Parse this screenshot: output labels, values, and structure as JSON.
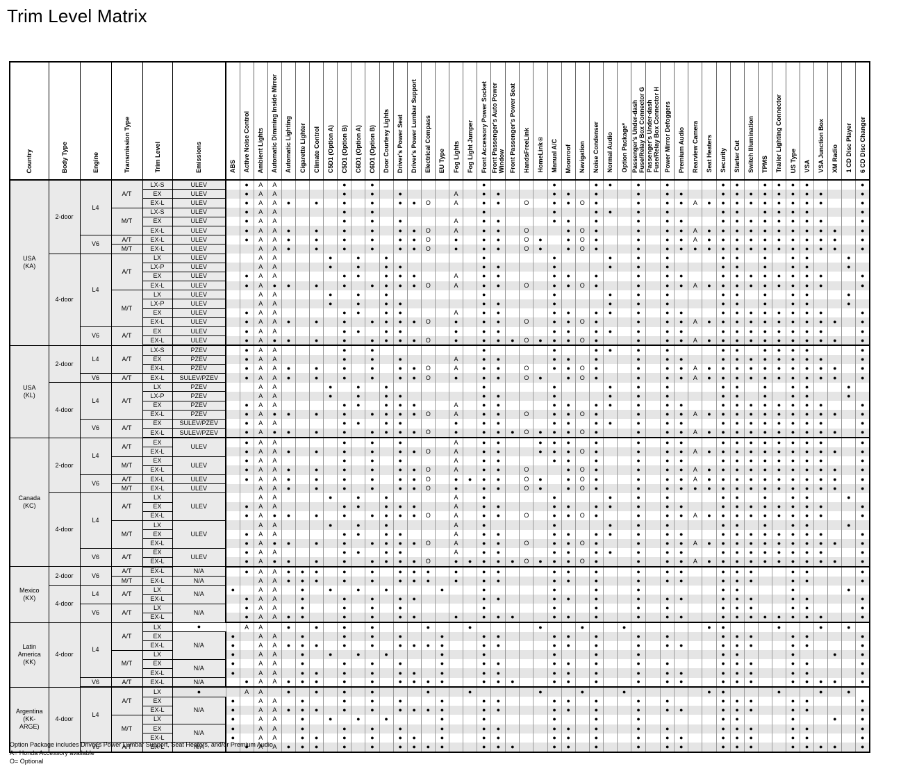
{
  "title": "Trim Level Matrix",
  "left_headers": [
    "Country",
    "Body Type",
    "Engine",
    "Transmission Type",
    "Trim Level",
    "Emissions"
  ],
  "features": [
    "ABS",
    "Active Noise Control",
    "Ambient Lights",
    "Automatic Dimming Inside Mirror",
    "Automatic Lighting",
    "Cigarette Lighter",
    "Climate Control",
    "C5D1 (Option A)",
    "C5D1 (Option B)",
    "C6D1 (Option A)",
    "C6D1 (Option B)",
    "Door Courtesy Lights",
    "Driver's Power Seat",
    "Driver's Power Lumbar Support",
    "Electrical Compass",
    "EU Type",
    "Fog Lights",
    "Fog Light Jumper",
    "Front Accessory Power Socket",
    "Front Passenger's Auto Power\nWindow",
    "Front Passenger's Power Seat",
    "HandsFreeLink",
    "HomeLink®",
    "Manual A/C",
    "Moonroof",
    "Navigation",
    "Noise Condenser",
    "Normal Audio",
    "Option Package*",
    "Passenger's Under-dash\nFuse/Relay Box Connector G",
    "Passenger's Under-dash\nFuse/Relay Box Connector H",
    "Power Mirror Defoggers",
    "Premium Audio",
    "Rearview Camera",
    "Seat Heaters",
    "Security",
    "Starter Cut",
    "Switch Illumination",
    "TPMS",
    "Trailer Lighting Connector",
    "US Type",
    "VSA",
    "VSA Junction Box",
    "XM Radio",
    "1 CD Disc Player",
    "6 CD Disc Changer"
  ],
  "rows": [
    {
      "trim": "LX-S",
      "emis": "ULEV",
      "cells": ". ● A A . . . . ● . ● . . . . . . . ● . . . . ● . . ● ● . ● . ● . . . ● ● . ● ● ● ● . . . ●"
    },
    {
      "trim": "EX",
      "emis": "ULEV",
      "cells": ". ● A A . . . . ● . ● . ● . . . A . ● ● . . . ● ● . ● . . ● . ● ● . . ● ● ● ● ● ● ● ● . . ●"
    },
    {
      "trim": "EX-L",
      "emis": "ULEV",
      "cells": ". ● A A ● . ● . ● . ● . ● ● O . A . ● ● . O . ● ● O ● . . ● . ● ● A ● ● ● ● ● ● ● ● ● . . ●"
    },
    {
      "trim": "LX-S",
      "emis": "ULEV",
      "cells": ". ● A A . . . . ● . ● . . . . . . . ● . . . . ● . . ● ● . ● . ● . . . ● ● . ● ● ● ● . . . ●"
    },
    {
      "trim": "EX",
      "emis": "ULEV",
      "cells": ". ● A A . . . . ● . ● . ● . . . A . ● ● . . . ● ● . ● . . ● . ● ● . . ● ● ● ● ● ● ● ● . . ●"
    },
    {
      "trim": "EX-L",
      "emis": "ULEV",
      "cells": ". ● A A ● . ● . ● . ● . ● ● O . A . ● ● . O . . ● O ● . . ● . ● ● A ● ● ● ● ● ● ● ● ● ● . ●"
    },
    {
      "trim": "EX-L",
      "emis": "ULEV",
      "cells": ". ● A A ● . ● . ● . ● . ● ● O . ● . ● ● . O ● . ● O ● . . ● . ● ● A ● ● ● ● ● ● ● ● ● ● . ●"
    },
    {
      "trim": "EX-L",
      "emis": "ULEV",
      "cells": ". . A A ● . ● . ● . ● . ● ● O . ● . ● ● . O ● . ● O ● . . ● . ● ● ● ● ● ● ● ● ● ● ● ● ● . ●"
    },
    {
      "trim": "LX",
      "emis": "ULEV",
      "cells": ". . A A . . . ● . ● . ● . . . . . . ● . . . . ● . . . ● . ● . ● . . . ● ● . ● . ● ● . . ● ."
    },
    {
      "trim": "LX-P",
      "emis": "ULEV",
      "cells": ". . A A . . . ● . ● . ● ● . . . . . ● ● . . . ● . . . ● . ● . ● . . . ● ● . ● . ● ● . . ● ."
    },
    {
      "trim": "EX",
      "emis": "ULEV",
      "cells": ". ● A A . . . . ● ● . ● ● ● . . A . ● ● . . . ● ● . ● . . ● . ● ● . . ● ● ● ● ● ● ● ● . . ●"
    },
    {
      "trim": "EX-L",
      "emis": "ULEV",
      "cells": ". ● A ● ● . ● . ● . ● ● ● ● O . A . ● ● . O . ● ● O ● . . ● . ● ● A ● ● ● ● ● ● ● ● ● . . ●"
    },
    {
      "trim": "LX",
      "emis": "ULEV",
      "cells": ". . A A . . . ● . ● . ● . . . . . . ● . . . . ● . . . ● . ● . ● . . . ● ● . ● . ● ● . . ● ."
    },
    {
      "trim": "LX-P",
      "emis": "ULEV",
      "cells": ". . A A . . . ● . ● . ● ● . . . . . ● ● . . . ● . . . ● . ● . ● . . . ● ● . ● . ● ● . . ● ."
    },
    {
      "trim": "EX",
      "emis": "ULEV",
      "cells": ". ● A A . . . . ● ● . ● ● . . . A . ● ● . . . ● ● . ● ● . ● . ● ● . . ● ● ● ● ● ● ● ● . . ●"
    },
    {
      "trim": "EX-L",
      "emis": "ULEV",
      "cells": ". ● A A ● . ● . ● . ● ● ● ● O . ● . ● ● . O . ● ● O ● . . ● . ● ● A ● ● ● ● ● ● ● ● ● ● . ●"
    },
    {
      "trim": "EX",
      "emis": "ULEV",
      "cells": ". ● A A . . . . ● ● . ● ● . . . ● . ● ● . . . ● ● . ● ● . ● . ● ● . . ● ● ● ● ● ● ● ● . . ●"
    },
    {
      "trim": "EX-L",
      "emis": "ULEV",
      "cells": ". ● A ● ● . ● . ● . ● ● ● ● O . ● . ● ● ● O ● ● ● O ● . . ● . ● ● A ● ● ● ● ● ● ● ● ● ● . ●"
    },
    {
      "trim": "LX-S",
      "emis": "PZEV",
      "cells": ". ● A A . . . . ● . ● . . . . . . . ● . . . . ● . . ● ● . ● . ● . . . ● ● . ● ● ● ● . . . ●"
    },
    {
      "trim": "EX",
      "emis": "PZEV",
      "cells": ". ● A A . . . . ● . ● . ● . . . A . ● ● . . . ● ● . ● . . ● . ● ● . . ● ● ● ● ● ● ● ● . . ●"
    },
    {
      "trim": "EX-L",
      "emis": "PZEV",
      "cells": ". ● A A ● . ● . ● . ● . ● ● O . A . ● ● . O . ● ● O ● . . ● . ● ● A ● ● ● ● ● ● ● ● ● ● . ●"
    },
    {
      "trim": "EX-L",
      "emis": "SULEV/PZEV",
      "cells": ". ● A A ● . ● . ● . ● . ● ● O . ● . ● ● . O ● . ● O ● . . ● . ● ● A ● ● ● ● ● ● ● ● ● ● . ●"
    },
    {
      "trim": "LX",
      "emis": "PZEV",
      "cells": ". . A A . . . ● . ● . ● . . . . . . ● . . . . ● . . . ● . ● . ● . . . ● ● . ● . ● ● . . ● ."
    },
    {
      "trim": "LX-P",
      "emis": "PZEV",
      "cells": ". . A A . . . ● . ● . ● ● . . . . . ● ● . . . ● . . . ● . ● . ● . . . ● ● . ● . ● ● . . ● ."
    },
    {
      "trim": "EX",
      "emis": "PZEV",
      "cells": ". ● A A . . . . ● ● . ● ● ● . . A . ● ● . . . ● ● . ● ● . ● . ● ● . . ● ● ● ● ● ● ● ● . . ●"
    },
    {
      "trim": "EX-L",
      "emis": "PZEV",
      "cells": ". ● A ● ● . ● . ● . ● ● ● ● O . A . ● ● . O . ● ● O ● . . ● . ● ● A ● ● ● ● ● ● ● ● ● ● . ●"
    },
    {
      "trim": "EX",
      "emis": "SULEV/PZEV",
      "cells": ". ● A A . . . . ● ● . ● ● . . . ● . ● ● . . . ● ● . ● ● . ● . ● ● . . ● ● ● ● ● ● ● ● . . ●"
    },
    {
      "trim": "EX-L",
      "emis": "SULEV/PZEV",
      "cells": ". ● A ● ● . ● . ● . ● ● ● ● O . ● . ● ● ● O ● ● ● O ● . . ● . ● ● A ● ● ● ● ● ● ● ● ● ● . ●"
    },
    {
      "trim": "EX",
      "emis": "ULEV",
      "cells": ". ● A A . . . . ● . ● . ● . . . A . ● ● . . ● ● ● . ● . . ● . ● ● . . ● ● ● ● ● ● ● ● . . ●"
    },
    {
      "trim": "EX-L",
      "emis": "",
      "cells": ". ● A A ● . ● . ● . ● . ● ● O . A . ● ● . . ● ● ● O ● . . ● . ● ● A ● ● ● ● ● ● ● ● ● ● . ●"
    },
    {
      "trim": "EX",
      "emis": "ULEV",
      "cells": ". ● A A . . . . ● . ● . ● . . . A . ● ● . . . ● ● . ● . . ● . ● ● . . ● ● ● ● ● ● ● ● . . ●"
    },
    {
      "trim": "EX-L",
      "emis": "",
      "cells": ". ● A A ● . ● . ● . ● . ● ● O . A . ● ● . O . . ● O ● . . ● . ● ● A ● ● ● ● ● ● ● ● ● ● . ●"
    },
    {
      "trim": "EX-L",
      "emis": "ULEV",
      "cells": ". ● A A ● . ● . ● . ● . ● ● O . ● ● ● ● . O ● . ● O ● . . ● . ● ● A ● ● ● ● ● ● ● ● ● ● . ●"
    },
    {
      "trim": "EX-L",
      "emis": "ULEV",
      "cells": ". . A A ● . ● . ● . ● . ● ● O . ● . ● ● . O ● . ● O ● . . ● . ● ● ● ● ● ● ● ● ● ● ● ● ● . ●"
    },
    {
      "trim": "LX",
      "emis": "ULEV",
      "cells": ". . A A . . . ● . ● . ● . . . . A . ● . . . . ● . . . ● . ● . ● . . . ● ● . ● . ● ● . . ● ."
    },
    {
      "trim": "EX",
      "emis": "",
      "cells": ". ● A A . . . . ● ● . ● ● ● . . A . ● ● . . . ● ● . ● ● . ● . ● ● . . ● ● ● ● ● ● ● ● . . ●"
    },
    {
      "trim": "EX-L",
      "emis": "",
      "cells": ". ● A ● ● . ● . ● . ● ● ● ● O . A . ● ● . O . ● ● O ● . . ● . ● ● A ● ● ● ● ● ● ● ● ● . . ●"
    },
    {
      "trim": "LX",
      "emis": "ULEV",
      "cells": ". . A A . . . ● . ● . ● . . . . A . ● . . . . ● . . . ● . ● . ● . . . ● ● . ● . ● ● . . ● ."
    },
    {
      "trim": "EX",
      "emis": "",
      "cells": ". ● A A . . . . ● ● . ● ● . . . A . ● ● . . . ● ● . ● ● . ● . ● ● . . ● ● ● ● ● ● ● ● . . ●"
    },
    {
      "trim": "EX-L",
      "emis": "",
      "cells": ". ● A ● ● . ● . ● . ● ● ● ● O . A . ● ● . O . ● ● O ● . . ● . ● ● A ● ● ● ● ● ● ● ● ● ● . ●"
    },
    {
      "trim": "EX",
      "emis": "ULEV",
      "cells": ". ● A A . . . . ● ● . ● ● . . . A . ● ● . . . ● ● . ● ● . ● . ● ● . . ● ● ● ● ● ● ● ● . . ●"
    },
    {
      "trim": "EX-L",
      "emis": "",
      "cells": ". ● A ● ● . ● . ● . ● ● ● ● O . ● ● ● ● ● O ● ● ● O ● . . ● . ● ● A ● ● ● ● ● ● ● ● ● ● . ●"
    },
    {
      "trim": "EX-L",
      "emis": "N/A",
      "cells": ". ● A A ● ● ● . ● . ● . ● ● ● . ● . ● ● . . . ● ● . ● . . ● . ● ● . . ● ● ● . . ● ● . . . ●"
    },
    {
      "trim": "EX-L",
      "emis": "N/A",
      "cells": ". . A A ● ● ● . ● . ● . ● ● ● . ● . ● ● . . . ● ● . ● . . ● . ● ● . . ● ● ● . . ● ● . . . ●"
    },
    {
      "trim": "LX",
      "emis": "N/A",
      "cells": "● . A A . ● . ● . ● . ● . . . ● . . ● . . . . ● . . ● . . ● . . . . . ● ● . . . ● . . . ● ."
    },
    {
      "trim": "EX-L",
      "emis": "",
      "cells": ". ● A A . ● . . ● . ● . ● ● . . . . ● ● . . . ● ● . ● . . ● . ● ● . . ● ● ● . . ● ● . . . ●"
    },
    {
      "trim": "LX",
      "emis": "N/A",
      "cells": ". ● A A . ● . . ● . ● . ● . . . . . ● . . . . ● . . ● . . ● . ● . . . ● ● ● . . ● ● . . . ●"
    },
    {
      "trim": "EX-L",
      "emis": "",
      "cells": ". ● A A ● ● . . ● . ● . ● ● . . ● . ● ● ● . . ● ● . ● . . ● . ● ● . . ● ● ● ● ● ● ● ● . . ●"
    },
    {
      "trim": "LX",
      "emis": "",
      "cells": "● . A A . ● . ● . ● . ● . . . ● . . ● . . . . ● . . ● . . ● . . . . . ● ● . . . ● . . ● . ●"
    },
    {
      "trim": "EX",
      "emis": "N/A",
      "cells": "● . A A . ● . . ● . ● . ● . . ● . . ● ● . . . ● ● . ● . . ● . ● . . . ● ● ● . . ● ● . . . ●"
    },
    {
      "trim": "EX-L",
      "emis": "",
      "cells": "● . A A ● ● ● . ● . ● . ● ● ● ● . . ● ● . . . ● ● . ● . . ● . ● ● . . ● ● ● . . ● ● . . . ●"
    },
    {
      "trim": "LX",
      "emis": "",
      "cells": "● . A A . ● . ● . ● . ● . . . ● . . ● . . . . ● . . ● . . ● . . . . . ● ● . . . ● . . ● . ●"
    },
    {
      "trim": "EX",
      "emis": "N/A",
      "cells": "● . A A . ● . . ● . ● . ● . . ● . . ● ● . . . ● ● . ● . . ● . ● . . . ● ● ● . . ● ● . . . ●"
    },
    {
      "trim": "EX-L",
      "emis": "",
      "cells": "● . A A . ● ● . ● . ● . ● ● . ● . . ● ● . . . ● ● . ● . . ● . ● ● . . ● ● ● . . ● ● . . . ●"
    },
    {
      "trim": "EX-L",
      "emis": "N/A",
      "cells": ". ● A A ● ● ● . ● . ● . ● ● ● ● . . ● ● ● . . ● ● . ● . . ● . ● ● . . ● ● ● . . ● ● ● ● . ●"
    },
    {
      "trim": "LX",
      "emis": "",
      "cells": "● . A A . ● . ● . ● . ● . . . ● . . ● . . . . ● . . ● . . ● . . . . . ● ● . . . ● . . ● . ●"
    },
    {
      "trim": "EX",
      "emis": "N/A",
      "cells": "● . A A . ● . . ● . ● . ● . . ● . . ● ● . . . ● ● . ● . . ● . ● . . . ● ● ● . . ● ● . . . ●"
    },
    {
      "trim": "EX-L",
      "emis": "",
      "cells": "● . A A ● ● ● . ● . ● . ● ● ● ● . . ● ● . . . ● ● . ● . . ● . ● ● . . ● ● ● . . ● ● . . . ●"
    },
    {
      "trim": "LX",
      "emis": "",
      "cells": "● . A A . ● . ● . ● . ● . . . ● . . ● . . . . ● . . ● . . ● . . . . . ● ● . . . ● . . ● . ●"
    },
    {
      "trim": "EX",
      "emis": "N/A",
      "cells": "● . A A . ● . . ● . ● . ● . . ● . . ● ● . . . ● ● . ● . . ● . ● . . . ● ● ● . . ● ● . . . ●"
    },
    {
      "trim": "EX-L",
      "emis": "",
      "cells": "● . A A . ● ● . ● . ● . ● ● . ● . . ● ● . . . ● ● . ● . . ● . ● ● . . ● ● ● . . ● ● . . . ●"
    },
    {
      "trim": "EX-L",
      "emis": "N/A",
      "cells": ". ● A A ● ● ● . ● . ● . ● ● ● ● . . ● ● ● . . ● ● . ● . . ● . ● ● . . ● ● ● . . ● ● ● ● . ●"
    }
  ],
  "groups": {
    "country": [
      {
        "label": "USA\n(KA)",
        "span": 18
      },
      {
        "label": "USA\n(KL)",
        "span": 10
      },
      {
        "label": "Canada\n(KC)",
        "span": 14
      },
      {
        "label": "Mexico\n(KX)",
        "span": 6
      },
      {
        "label": "Latin\nAmerica\n(KK)",
        "span": 7
      },
      {
        "label": "Argentina\n(KK-\nARGE)",
        "span": 7
      }
    ],
    "body": [
      {
        "label": "2-door",
        "span": 8
      },
      {
        "label": "4-door",
        "span": 10
      },
      {
        "label": "2-door",
        "span": 4
      },
      {
        "label": "4-door",
        "span": 6
      },
      {
        "label": "2-door",
        "span": 6
      },
      {
        "label": "4-door",
        "span": 8
      },
      {
        "label": "2-door",
        "span": 2
      },
      {
        "label": "4-door",
        "span": 4
      },
      {
        "label": "4-door",
        "span": 7
      },
      {
        "label": "4-door",
        "span": 7
      }
    ],
    "engine": [
      {
        "label": "L4",
        "span": 6
      },
      {
        "label": "V6",
        "span": 2
      },
      {
        "label": "L4",
        "span": 8
      },
      {
        "label": "V6",
        "span": 2
      },
      {
        "label": "L4",
        "span": 3
      },
      {
        "label": "V6",
        "span": 1
      },
      {
        "label": "L4",
        "span": 4
      },
      {
        "label": "V6",
        "span": 2
      },
      {
        "label": "L4",
        "span": 4
      },
      {
        "label": "V6",
        "span": 2
      },
      {
        "label": "L4",
        "span": 6
      },
      {
        "label": "V6",
        "span": 2
      },
      {
        "label": "V6",
        "span": 2
      },
      {
        "label": "L4",
        "span": 2
      },
      {
        "label": "V6",
        "span": 2
      },
      {
        "label": "L4",
        "span": 6
      },
      {
        "label": "V6",
        "span": 1
      },
      {
        "label": "L4",
        "span": 6
      },
      {
        "label": "V6",
        "span": 1
      }
    ],
    "trans": [
      {
        "label": "A/T",
        "span": 3
      },
      {
        "label": "M/T",
        "span": 3
      },
      {
        "label": "A/T",
        "span": 1
      },
      {
        "label": "M/T",
        "span": 1
      },
      {
        "label": "A/T",
        "span": 4
      },
      {
        "label": "M/T",
        "span": 4
      },
      {
        "label": "A/T",
        "span": 2
      },
      {
        "label": "A/T",
        "span": 3
      },
      {
        "label": "A/T",
        "span": 1
      },
      {
        "label": "A/T",
        "span": 4
      },
      {
        "label": "A/T",
        "span": 2
      },
      {
        "label": "A/T",
        "span": 2
      },
      {
        "label": "M/T",
        "span": 2
      },
      {
        "label": "A/T",
        "span": 1
      },
      {
        "label": "M/T",
        "span": 1
      },
      {
        "label": "A/T",
        "span": 3
      },
      {
        "label": "M/T",
        "span": 3
      },
      {
        "label": "A/T",
        "span": 2
      },
      {
        "label": "A/T",
        "span": 1
      },
      {
        "label": "M/T",
        "span": 1
      },
      {
        "label": "A/T",
        "span": 2
      },
      {
        "label": "A/T",
        "span": 2
      },
      {
        "label": "A/T",
        "span": 3
      },
      {
        "label": "M/T",
        "span": 3
      },
      {
        "label": "A/T",
        "span": 1
      },
      {
        "label": "A/T",
        "span": 3
      },
      {
        "label": "M/T",
        "span": 3
      },
      {
        "label": "A/T",
        "span": 1
      }
    ],
    "section_ends": [
      18,
      28,
      42,
      48,
      55,
      62
    ]
  },
  "notes": [
    "Option Package includes Driver's Power Lumbar Support, Seat Heaters, and/or Premium Audio",
    "A= Honda Accessory available",
    "O= Optional"
  ]
}
